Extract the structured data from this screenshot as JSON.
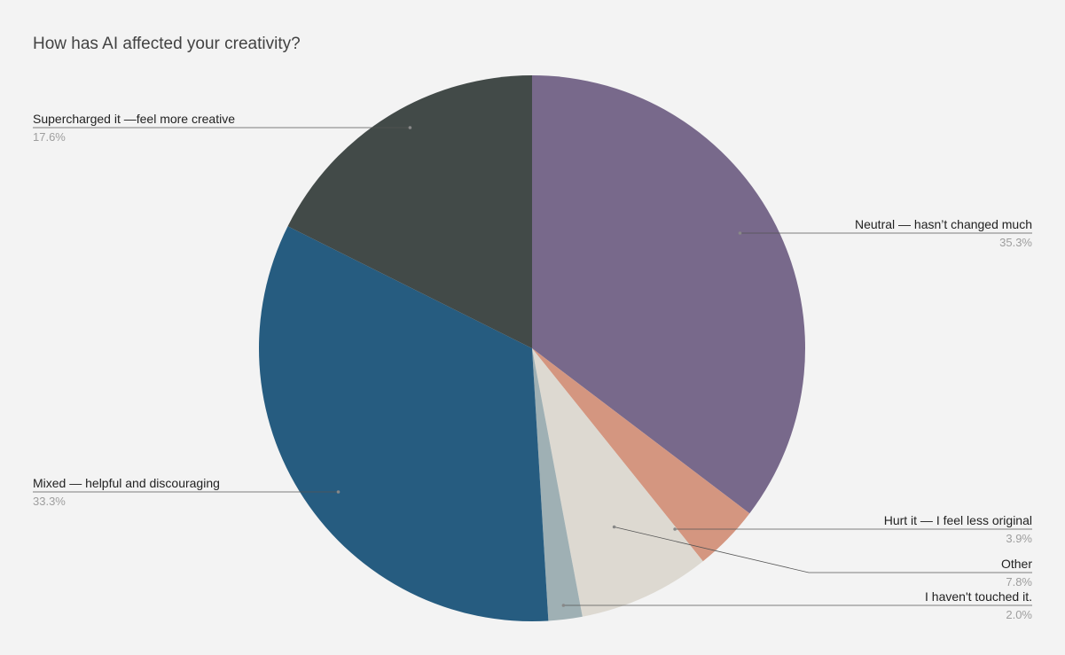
{
  "chart_data": {
    "type": "pie",
    "title": "How has AI affected your creativity?",
    "start_angle_deg": 0,
    "direction": "clockwise",
    "slices": [
      {
        "label": "Neutral — hasn’t changed much",
        "value": 35.3,
        "display": "35.3%",
        "color": "#78698b"
      },
      {
        "label": "Hurt it — I feel less original",
        "value": 3.9,
        "display": "3.9%",
        "color": "#d49680"
      },
      {
        "label": "Other",
        "value": 7.8,
        "display": "7.8%",
        "color": "#ddd9d1"
      },
      {
        "label": "I haven't touched it.",
        "value": 2.0,
        "display": "2.0%",
        "color": "#9fb0b4"
      },
      {
        "label": "Mixed — helpful and discouraging",
        "value": 33.3,
        "display": "33.3%",
        "color": "#265c80"
      },
      {
        "label": "Supercharged it —feel more creative",
        "value": 17.6,
        "display": "17.6%",
        "color": "#424a48"
      }
    ]
  }
}
